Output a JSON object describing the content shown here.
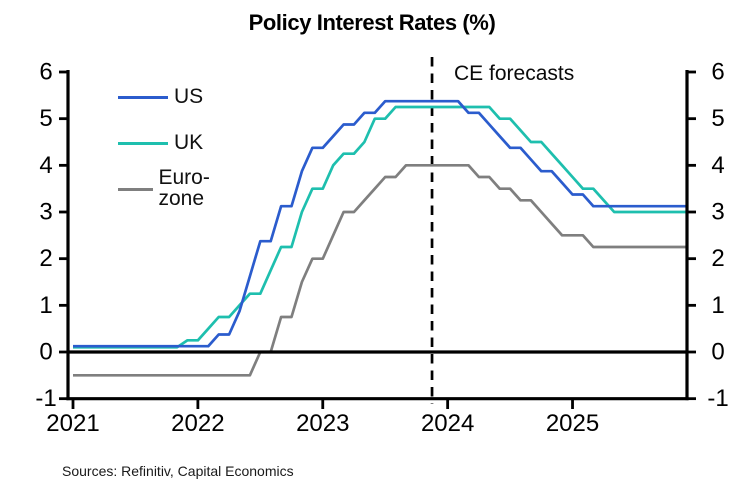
{
  "header": {
    "title": "Policy Interest Rates (%)"
  },
  "sources": {
    "text": "Sources: Refinitiv, Capital Economics"
  },
  "colors": {
    "background": "#ffffff",
    "axis": "#000000",
    "text": "#1a1a1a",
    "us_blue": "#2b5ccd",
    "uk_teal": "#1ebfae",
    "eurozone_gray": "#7f7f7f"
  },
  "chart_data": {
    "type": "line",
    "title": "Policy Interest Rates (%)",
    "xlabel": "",
    "ylabel": "",
    "x_unit": "month",
    "x_start": "2021-01",
    "x_end": "2025-12",
    "xtick_labels": [
      "2021",
      "2022",
      "2023",
      "2024",
      "2025"
    ],
    "xtick_month_indices": [
      0,
      12,
      24,
      36,
      48
    ],
    "ylim": [
      -1,
      6
    ],
    "yticks": [
      -1,
      0,
      1,
      2,
      3,
      4,
      5,
      6
    ],
    "y_axis_sides": [
      "left",
      "right"
    ],
    "grid": false,
    "zero_baseline": true,
    "legend_position": "upper-left-inside",
    "annotation": {
      "label": "CE forecasts",
      "type": "dashed-vertical-line",
      "x_date": "2023-11",
      "x_month_index": 34.5
    },
    "series": [
      {
        "name": "US",
        "color": "#2b5ccd",
        "values": [
          0.125,
          0.125,
          0.125,
          0.125,
          0.125,
          0.125,
          0.125,
          0.125,
          0.125,
          0.125,
          0.125,
          0.125,
          0.125,
          0.125,
          0.375,
          0.375,
          0.875,
          1.625,
          2.375,
          2.375,
          3.125,
          3.125,
          3.875,
          4.375,
          4.375,
          4.625,
          4.875,
          4.875,
          5.125,
          5.125,
          5.375,
          5.375,
          5.375,
          5.375,
          5.375,
          5.375,
          5.375,
          5.375,
          5.125,
          5.125,
          4.875,
          4.625,
          4.375,
          4.375,
          4.125,
          3.875,
          3.875,
          3.625,
          3.375,
          3.375,
          3.125,
          3.125,
          3.125,
          3.125,
          3.125,
          3.125,
          3.125,
          3.125,
          3.125,
          3.125
        ]
      },
      {
        "name": "UK",
        "color": "#1ebfae",
        "values": [
          0.1,
          0.1,
          0.1,
          0.1,
          0.1,
          0.1,
          0.1,
          0.1,
          0.1,
          0.1,
          0.1,
          0.25,
          0.25,
          0.5,
          0.75,
          0.75,
          1.0,
          1.25,
          1.25,
          1.75,
          2.25,
          2.25,
          3.0,
          3.5,
          3.5,
          4.0,
          4.25,
          4.25,
          4.5,
          5.0,
          5.0,
          5.25,
          5.25,
          5.25,
          5.25,
          5.25,
          5.25,
          5.25,
          5.25,
          5.25,
          5.25,
          5.0,
          5.0,
          4.75,
          4.5,
          4.5,
          4.25,
          4.0,
          3.75,
          3.5,
          3.5,
          3.25,
          3.0,
          3.0,
          3.0,
          3.0,
          3.0,
          3.0,
          3.0,
          3.0
        ]
      },
      {
        "name": "Euro-zone",
        "color": "#7f7f7f",
        "values": [
          -0.5,
          -0.5,
          -0.5,
          -0.5,
          -0.5,
          -0.5,
          -0.5,
          -0.5,
          -0.5,
          -0.5,
          -0.5,
          -0.5,
          -0.5,
          -0.5,
          -0.5,
          -0.5,
          -0.5,
          -0.5,
          0.0,
          0.0,
          0.75,
          0.75,
          1.5,
          2.0,
          2.0,
          2.5,
          3.0,
          3.0,
          3.25,
          3.5,
          3.75,
          3.75,
          4.0,
          4.0,
          4.0,
          4.0,
          4.0,
          4.0,
          4.0,
          3.75,
          3.75,
          3.5,
          3.5,
          3.25,
          3.25,
          3.0,
          2.75,
          2.5,
          2.5,
          2.5,
          2.25,
          2.25,
          2.25,
          2.25,
          2.25,
          2.25,
          2.25,
          2.25,
          2.25,
          2.25
        ]
      }
    ]
  }
}
